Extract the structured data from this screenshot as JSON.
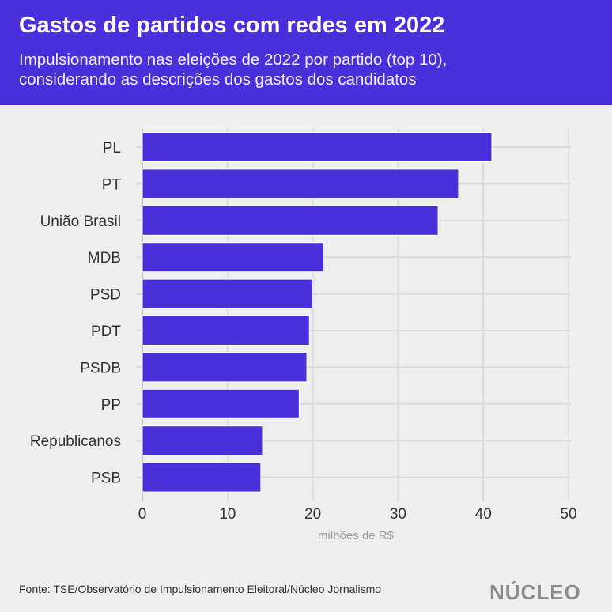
{
  "header": {
    "title": "Gastos de partidos com redes em 2022",
    "subtitle_line1": "Impulsionamento nas eleições de 2022 por partido (top 10),",
    "subtitle_line2": "considerando as descrições dos gastos dos candidatos"
  },
  "footer": {
    "source": "Fonte: TSE/Observatório de Impulsionamento Eleitoral/Núcleo Jornalismo",
    "logo": "NÚCLEO"
  },
  "colors": {
    "header": "#4a30db",
    "bar": "#4a30db",
    "background": "#efefef"
  },
  "chart_data": {
    "type": "bar",
    "orientation": "horizontal",
    "categories": [
      "PL",
      "PT",
      "União Brasil",
      "MDB",
      "PSD",
      "PDT",
      "PSDB",
      "PP",
      "Republicanos",
      "PSB"
    ],
    "values": [
      41.0,
      37.1,
      34.7,
      21.3,
      20.0,
      19.6,
      19.3,
      18.4,
      14.1,
      13.9
    ],
    "xlabel": "milhões de R$",
    "xlim": [
      0,
      50
    ],
    "xticks": [
      0,
      10,
      20,
      30,
      40,
      50
    ],
    "grid": true
  }
}
